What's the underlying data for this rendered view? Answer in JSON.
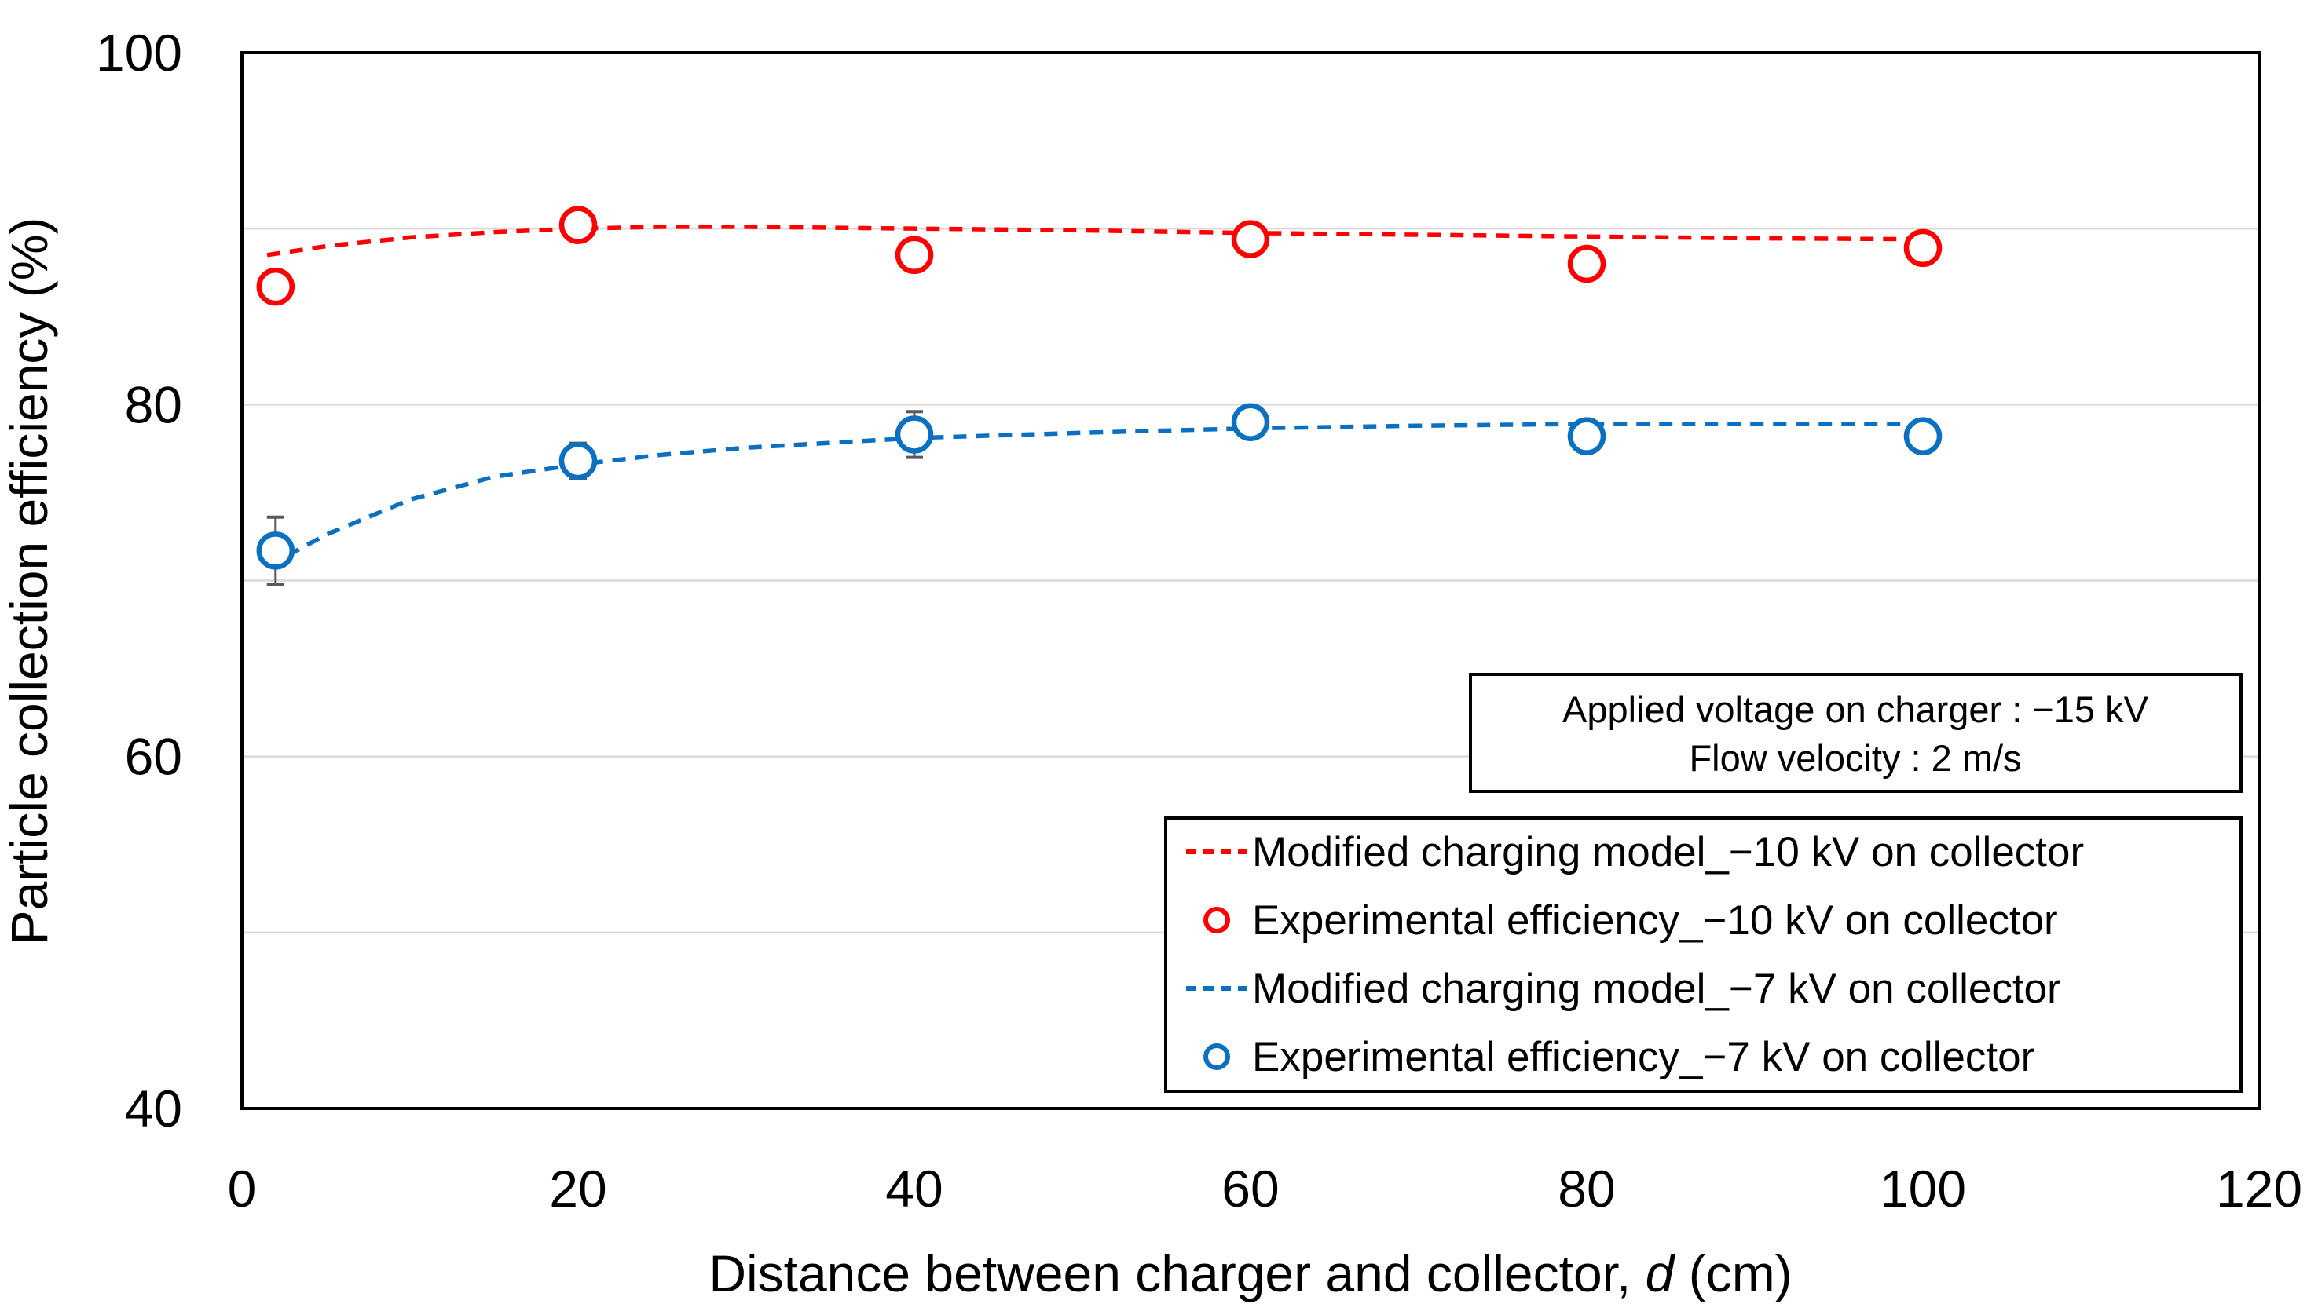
{
  "chart_data": {
    "type": "scatter",
    "title": "",
    "xlabel_parts": {
      "prefix": "Distance between charger and collector, ",
      "variable": "d",
      "suffix": " (cm)"
    },
    "ylabel": "Particle collection efficiency (%)",
    "xlim": [
      0,
      120
    ],
    "ylim": [
      40,
      100
    ],
    "xticks": [
      0,
      20,
      40,
      60,
      80,
      100,
      120
    ],
    "yticks": [
      40,
      60,
      80,
      100
    ],
    "gridlines_y": [
      50,
      60,
      70,
      80,
      90
    ],
    "grid": "horizontal-light-gray",
    "legend_position": "lower-right-boxed",
    "colors": {
      "red_series": "#FF0000",
      "blue_series": "#0B70C0",
      "gridline": "#D9D9D9",
      "error_bar": "#595959",
      "axis": "#000000"
    },
    "series": [
      {
        "name": "Modified charging model_−10 kV on collector",
        "type": "line",
        "style": "dashed",
        "color": "#FF0000",
        "x": [
          1.5,
          5,
          10,
          15,
          20,
          25,
          30,
          40,
          50,
          60,
          70,
          80,
          90,
          100
        ],
        "y": [
          88.5,
          89.0,
          89.5,
          89.8,
          90.0,
          90.1,
          90.1,
          90.0,
          89.9,
          89.75,
          89.65,
          89.55,
          89.45,
          89.4
        ]
      },
      {
        "name": "Experimental efficiency_−10 kV on collector",
        "type": "scatter",
        "marker": "open-circle",
        "color": "#FF0000",
        "x": [
          2,
          20,
          40,
          60,
          80,
          100
        ],
        "y": [
          86.7,
          90.2,
          88.5,
          89.4,
          88.0,
          88.9
        ],
        "error_y": [
          0,
          0,
          0,
          0,
          0,
          0
        ]
      },
      {
        "name": "Modified charging model_−7 kV on collector",
        "type": "line",
        "style": "dashed",
        "color": "#0B70C0",
        "x": [
          1.5,
          5,
          10,
          15,
          20,
          25,
          30,
          40,
          50,
          60,
          70,
          80,
          90,
          100
        ],
        "y": [
          70.8,
          72.6,
          74.6,
          75.9,
          76.6,
          77.15,
          77.55,
          78.1,
          78.4,
          78.65,
          78.8,
          78.9,
          78.9,
          78.9
        ]
      },
      {
        "name": "Experimental efficiency_−7 kV on collector",
        "type": "scatter",
        "marker": "open-circle",
        "color": "#0B70C0",
        "x": [
          2,
          20,
          40,
          60,
          80,
          100
        ],
        "y": [
          71.7,
          76.8,
          78.3,
          79.0,
          78.2,
          78.2
        ],
        "error_y": [
          1.9,
          1.0,
          1.3,
          0.6,
          0,
          0
        ]
      }
    ],
    "annotation": {
      "lines": [
        "Applied voltage on charger : −15 kV",
        "Flow velocity : 2 m/s"
      ]
    },
    "legend": {
      "entries": [
        {
          "marker": "dashed-line",
          "color": "#FF0000",
          "label": "Modified charging model_−10 kV on collector"
        },
        {
          "marker": "open-circle",
          "color": "#FF0000",
          "label": "Experimental efficiency_−10 kV on collector"
        },
        {
          "marker": "dashed-line",
          "color": "#0B70C0",
          "label": "Modified charging model_−7 kV on collector"
        },
        {
          "marker": "open-circle",
          "color": "#0B70C0",
          "label": "Experimental efficiency_−7 kV on collector"
        }
      ]
    }
  }
}
